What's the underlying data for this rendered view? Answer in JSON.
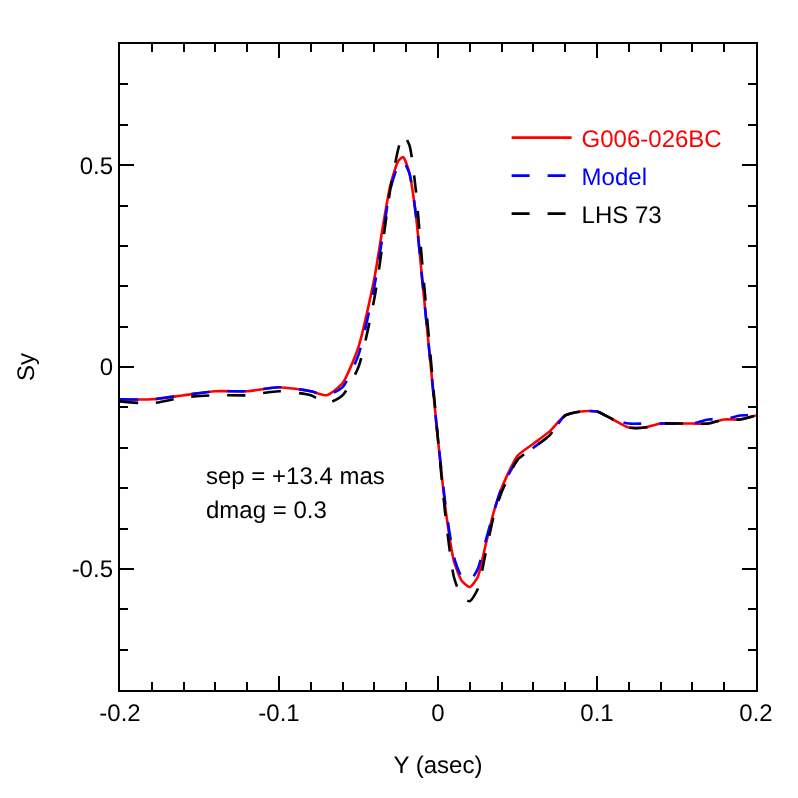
{
  "chart_data": {
    "type": "line",
    "xlabel": "Y (asec)",
    "ylabel": "Sy",
    "x": [
      -0.2,
      -0.18,
      -0.16,
      -0.14,
      -0.12,
      -0.1,
      -0.08,
      -0.07,
      -0.06,
      -0.05,
      -0.04,
      -0.035,
      -0.03,
      -0.025,
      -0.022,
      -0.018,
      -0.014,
      -0.01,
      -0.005,
      0,
      0.005,
      0.01,
      0.015,
      0.02,
      0.025,
      0.03,
      0.035,
      0.04,
      0.05,
      0.06,
      0.07,
      0.08,
      0.09,
      0.1,
      0.11,
      0.12,
      0.13,
      0.14,
      0.15,
      0.16,
      0.17,
      0.18,
      0.19,
      0.2
    ],
    "series": [
      {
        "name": "G006-026BC",
        "color": "#ff0000",
        "line_style": "solid",
        "values": [
          -0.08,
          -0.08,
          -0.07,
          -0.06,
          -0.06,
          -0.05,
          -0.06,
          -0.07,
          -0.04,
          0.05,
          0.22,
          0.34,
          0.45,
          0.51,
          0.52,
          0.48,
          0.38,
          0.22,
          0.02,
          -0.18,
          -0.36,
          -0.48,
          -0.53,
          -0.545,
          -0.52,
          -0.44,
          -0.36,
          -0.3,
          -0.22,
          -0.19,
          -0.16,
          -0.12,
          -0.11,
          -0.11,
          -0.13,
          -0.15,
          -0.15,
          -0.14,
          -0.14,
          -0.14,
          -0.14,
          -0.13,
          -0.13,
          -0.12
        ]
      },
      {
        "name": "Model",
        "color": "#0000ff",
        "line_style": "dashed",
        "values": [
          -0.08,
          -0.08,
          -0.07,
          -0.06,
          -0.06,
          -0.05,
          -0.06,
          -0.07,
          -0.05,
          0.03,
          0.2,
          0.32,
          0.44,
          0.5,
          0.51,
          0.48,
          0.38,
          0.22,
          0.02,
          -0.18,
          -0.35,
          -0.47,
          -0.52,
          -0.53,
          -0.5,
          -0.43,
          -0.36,
          -0.3,
          -0.23,
          -0.2,
          -0.17,
          -0.12,
          -0.11,
          -0.11,
          -0.13,
          -0.14,
          -0.14,
          -0.14,
          -0.14,
          -0.14,
          -0.13,
          -0.13,
          -0.12,
          -0.12
        ]
      },
      {
        "name": "LHS 73",
        "color": "#000000",
        "line_style": "dashed",
        "values": [
          -0.085,
          -0.09,
          -0.075,
          -0.07,
          -0.07,
          -0.06,
          -0.07,
          -0.09,
          -0.07,
          0.0,
          0.17,
          0.3,
          0.44,
          0.54,
          0.575,
          0.55,
          0.44,
          0.26,
          0.04,
          -0.18,
          -0.38,
          -0.52,
          -0.57,
          -0.58,
          -0.55,
          -0.46,
          -0.37,
          -0.31,
          -0.23,
          -0.2,
          -0.17,
          -0.12,
          -0.11,
          -0.11,
          -0.13,
          -0.15,
          -0.15,
          -0.14,
          -0.14,
          -0.14,
          -0.14,
          -0.13,
          -0.13,
          -0.12
        ]
      }
    ],
    "xlim": [
      -0.2,
      0.2
    ],
    "xticks": [
      -0.2,
      -0.1,
      0,
      0.1,
      0.2
    ],
    "ylim": [
      -0.8,
      0.8
    ],
    "yticks": [
      -0.5,
      0,
      0.5
    ],
    "legend": "top right",
    "marker": "none",
    "annotations": [
      "sep = +13.4 mas",
      "dmag = 0.3"
    ]
  }
}
